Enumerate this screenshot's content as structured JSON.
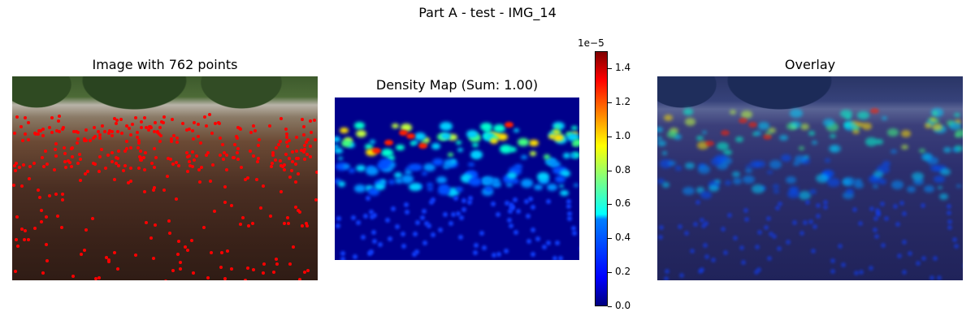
{
  "figure": {
    "suptitle": "Part A - test - IMG_14"
  },
  "panels": {
    "image": {
      "title": "Image with 762 points"
    },
    "density": {
      "title": "Density Map (Sum: 1.00)"
    },
    "overlay": {
      "title": "Overlay"
    }
  },
  "colors": {
    "point_marker": "#ff0000",
    "density_background": "#00008b",
    "colormap": "jet"
  },
  "chart_data": {
    "type": "heatmap",
    "title": "Density Map (Sum: 1.00)",
    "colorbar": {
      "colormap": "jet",
      "range": [
        0.0,
        1.5e-05
      ],
      "offset_label": "1e−5",
      "ticks": [
        0.0,
        0.2,
        0.4,
        0.6,
        0.8,
        1.0,
        1.2,
        1.4
      ],
      "tick_labels": [
        "0.0",
        "0.2",
        "0.4",
        "0.6",
        "0.8",
        "1.0",
        "1.2",
        "1.4"
      ]
    },
    "point_count": 762,
    "density_sum": 1.0
  }
}
